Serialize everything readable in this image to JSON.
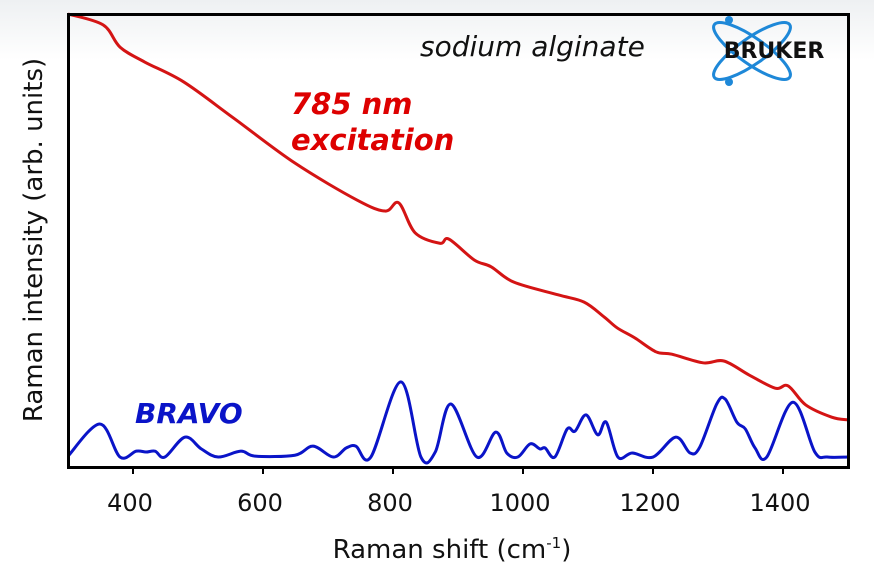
{
  "chart_data": {
    "type": "line",
    "title": "",
    "xlabel": "Raman shift (cm",
    "xlabel_sup": "-1",
    "xlabel_end": ")",
    "ylabel": "Raman intensity (arb. units)",
    "xlim": [
      300,
      1500
    ],
    "ylim": [
      0,
      1
    ],
    "xticks": [
      400,
      600,
      800,
      1000,
      1200,
      1400
    ],
    "yticks": [],
    "grid": false,
    "legend": "none",
    "annotations": {
      "sample": "sodium alginate",
      "red_line1": "785 nm",
      "red_line2": "excitation",
      "blue": "BRAVO"
    },
    "logo_text": "BRUKER",
    "series": [
      {
        "color": "#d41414",
        "x": [
          300,
          354,
          380,
          418,
          478,
          555,
          649,
          745,
          788,
          809,
          834,
          872,
          886,
          925,
          951,
          986,
          1054,
          1094,
          1125,
          1145,
          1172,
          1205,
          1229,
          1277,
          1309,
          1348,
          1388,
          1408,
          1435,
          1475,
          1500
        ],
        "y": [
          1.0,
          0.976,
          0.927,
          0.894,
          0.85,
          0.77,
          0.671,
          0.589,
          0.565,
          0.583,
          0.517,
          0.494,
          0.503,
          0.457,
          0.442,
          0.408,
          0.38,
          0.364,
          0.331,
          0.307,
          0.285,
          0.254,
          0.249,
          0.23,
          0.234,
          0.203,
          0.174,
          0.179,
          0.137,
          0.11,
          0.104
        ]
      },
      {
        "color": "#0a14c8",
        "x": [
          300,
          349,
          380,
          405,
          420,
          434,
          449,
          480,
          505,
          531,
          566,
          588,
          649,
          677,
          708,
          728,
          743,
          766,
          812,
          843,
          865,
          889,
          929,
          958,
          975,
          992,
          1011,
          1026,
          1034,
          1049,
          1068,
          1080,
          1097,
          1115,
          1128,
          1146,
          1168,
          1200,
          1235,
          1257,
          1272,
          1298,
          1311,
          1329,
          1342,
          1357,
          1375,
          1415,
          1449,
          1468,
          1500
        ],
        "y": [
          0.024,
          0.095,
          0.022,
          0.035,
          0.033,
          0.035,
          0.022,
          0.066,
          0.04,
          0.022,
          0.035,
          0.024,
          0.026,
          0.046,
          0.022,
          0.042,
          0.046,
          0.022,
          0.188,
          0.022,
          0.033,
          0.139,
          0.022,
          0.077,
          0.031,
          0.022,
          0.051,
          0.04,
          0.042,
          0.022,
          0.084,
          0.079,
          0.115,
          0.071,
          0.099,
          0.022,
          0.031,
          0.022,
          0.066,
          0.031,
          0.044,
          0.139,
          0.15,
          0.099,
          0.084,
          0.042,
          0.022,
          0.143,
          0.033,
          0.022,
          0.022
        ]
      }
    ]
  }
}
